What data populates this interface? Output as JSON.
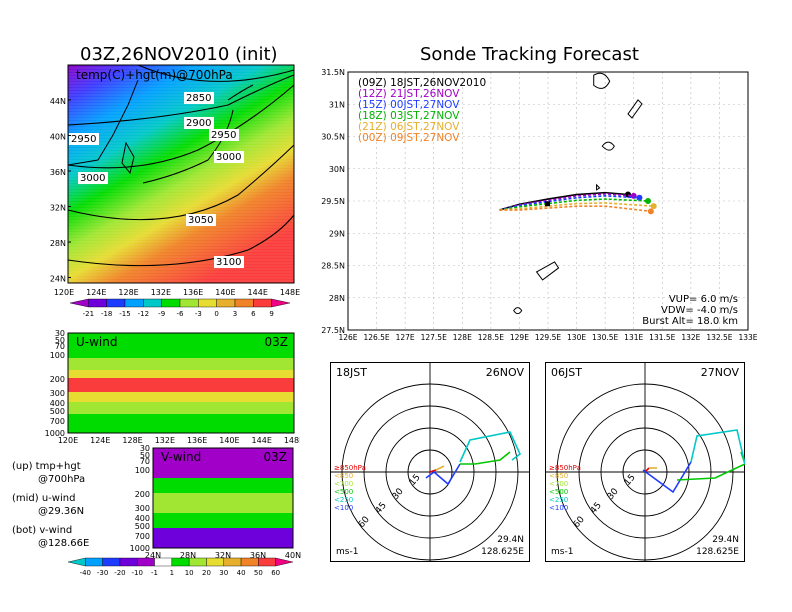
{
  "left": {
    "title": "03Z,26NOV2010 (init)",
    "map_label": "temp(C)+hgt(m)@700hPa",
    "contours": [
      "2850",
      "2900",
      "2950",
      "2950",
      "3000",
      "3000",
      "3050",
      "3100"
    ],
    "lat_ticks": [
      "44N",
      "40N",
      "36N",
      "32N",
      "28N",
      "24N"
    ],
    "lon_ticks": [
      "120E",
      "124E",
      "128E",
      "132E",
      "136E",
      "140E",
      "144E",
      "148E"
    ],
    "temp_cbar": {
      "labels": [
        "-21",
        "-18",
        "-15",
        "-12",
        "-9",
        "-6",
        "-3",
        "0",
        "3",
        "6",
        "9"
      ],
      "colors": [
        "#a000c8",
        "#6e00dc",
        "#1e3cff",
        "#00a0ff",
        "#00c8c8",
        "#00dc00",
        "#a0e632",
        "#e6dc32",
        "#e6af2d",
        "#f08228",
        "#fa3c3c",
        "#f00082"
      ]
    },
    "u_panel": {
      "label": "U-wind",
      "time": "03Z",
      "y_ticks": [
        "30",
        "50",
        "70",
        "100",
        "200",
        "300",
        "400",
        "500",
        "700",
        "1000"
      ],
      "x_ticks": [
        "120E",
        "124E",
        "128E",
        "132E",
        "136E",
        "140E",
        "144E",
        "148E"
      ]
    },
    "v_panel": {
      "label": "V-wind",
      "time": "03Z",
      "y_ticks": [
        "30",
        "50",
        "70",
        "100",
        "200",
        "300",
        "400",
        "500",
        "700",
        "1000"
      ],
      "x_ticks": [
        "24N",
        "28N",
        "32N",
        "36N",
        "40N"
      ]
    },
    "notes": [
      {
        "a": "(up) tmp+hgt",
        "b": "@700hPa"
      },
      {
        "a": "(mid) u-wind",
        "b": "@29.36N"
      },
      {
        "a": "(bot) v-wind",
        "b": "@128.66E"
      }
    ],
    "wind_cbar": {
      "labels": [
        "-40",
        "-30",
        "-20",
        "-10",
        "-1",
        "1",
        "10",
        "20",
        "30",
        "40",
        "50",
        "60"
      ],
      "colors": [
        "#00c8c8",
        "#00a0ff",
        "#1e3cff",
        "#6e00dc",
        "#a000c8",
        "#ffffff",
        "#00dc00",
        "#a0e632",
        "#e6dc32",
        "#e6af2d",
        "#f08228",
        "#fa3c3c",
        "#f00082"
      ]
    }
  },
  "right": {
    "title": "Sonde Tracking Forecast",
    "legend": [
      {
        "text": "(09Z) 18JST,26NOV2010",
        "color": "#000000"
      },
      {
        "text": "(12Z) 21JST,26NOV",
        "color": "#a000c8"
      },
      {
        "text": "(15Z) 00JST,27NOV",
        "color": "#1e3cff"
      },
      {
        "text": "(18Z) 03JST,27NOV",
        "color": "#00b400"
      },
      {
        "text": "(21Z) 06JST,27NOV",
        "color": "#e6af2d"
      },
      {
        "text": "(00Z) 09JST,27NOV",
        "color": "#f08228"
      }
    ],
    "params": [
      "VUP= 6.0 m/s",
      "VDW= -4.0 m/s",
      "Burst Alt= 18.0 km"
    ],
    "polar_left": {
      "time": "18JST",
      "date": "26NOV",
      "lat": "29.4N",
      "lon": "128.625E",
      "unit": "ms-1"
    },
    "polar_right": {
      "time": "06JST",
      "date": "27NOV",
      "lat": "29.4N",
      "lon": "128.625E",
      "unit": "ms-1"
    },
    "polar_rings": [
      "15",
      "30",
      "45",
      "60"
    ],
    "pressure_legend": [
      {
        "text": "≥850hPa",
        "color": "#e60000"
      },
      {
        "text": "<850",
        "color": "#e6af2d"
      },
      {
        "text": "<700",
        "color": "#a0e632"
      },
      {
        "text": "<500",
        "color": "#00c800"
      },
      {
        "text": "<250",
        "color": "#00c8c8"
      },
      {
        "text": "<100",
        "color": "#1e3cff"
      }
    ]
  },
  "chart_data": {
    "type": "line",
    "title": "Sonde Tracking Forecast",
    "xlabel": "",
    "ylabel": "",
    "x_ticks": [
      "126E",
      "126.5E",
      "127E",
      "127.5E",
      "128E",
      "128.5E",
      "129E",
      "129.5E",
      "130E",
      "130.5E",
      "131E",
      "131.5E",
      "132E",
      "132.5E",
      "133E"
    ],
    "y_ticks": [
      "27.5N",
      "28N",
      "28.5N",
      "29N",
      "29.5N",
      "30N",
      "30.5N",
      "31N",
      "31.5N"
    ],
    "xlim": [
      126,
      133
    ],
    "ylim": [
      27.5,
      31.5
    ],
    "grid": true,
    "legend_position": "top-left",
    "series": [
      {
        "name": "(09Z) 18JST,26NOV2010",
        "color": "#000000",
        "x": [
          128.65,
          129.0,
          129.5,
          130.0,
          130.5,
          130.9
        ],
        "y": [
          29.36,
          29.45,
          29.53,
          29.6,
          29.63,
          29.6
        ]
      },
      {
        "name": "(12Z) 21JST,26NOV",
        "color": "#a000c8",
        "x": [
          128.65,
          129.0,
          129.5,
          130.0,
          130.5,
          131.0
        ],
        "y": [
          29.36,
          29.44,
          29.51,
          29.58,
          29.61,
          29.58
        ]
      },
      {
        "name": "(15Z) 00JST,27NOV",
        "color": "#1e3cff",
        "x": [
          128.65,
          129.0,
          129.5,
          130.0,
          130.5,
          131.1
        ],
        "y": [
          29.36,
          29.43,
          29.49,
          29.55,
          29.58,
          29.55
        ]
      },
      {
        "name": "(18Z) 03JST,27NOV",
        "color": "#00b400",
        "x": [
          128.65,
          129.0,
          129.5,
          130.0,
          130.5,
          131.25
        ],
        "y": [
          29.36,
          29.41,
          29.46,
          29.51,
          29.53,
          29.5
        ]
      },
      {
        "name": "(21Z) 06JST,27NOV",
        "color": "#e6af2d",
        "x": [
          128.65,
          129.0,
          129.5,
          130.0,
          130.5,
          131.35
        ],
        "y": [
          29.36,
          29.38,
          29.42,
          29.46,
          29.47,
          29.42
        ]
      },
      {
        "name": "(00Z) 09JST,27NOV",
        "color": "#f08228",
        "x": [
          128.65,
          129.0,
          129.5,
          130.0,
          130.5,
          131.3
        ],
        "y": [
          29.36,
          29.36,
          29.39,
          29.42,
          29.42,
          29.34
        ]
      }
    ]
  }
}
